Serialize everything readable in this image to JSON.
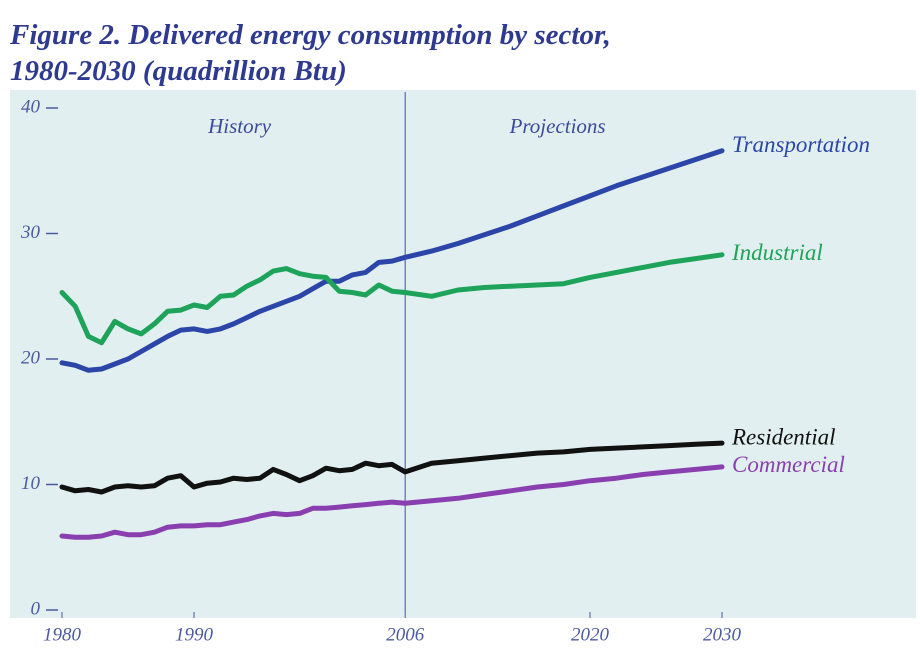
{
  "chart_data": {
    "type": "line",
    "title": [
      "Figure 2. Delivered energy consumption by sector,",
      "1980-2030 (quadrillion Btu)"
    ],
    "annotations": [
      "History",
      "Projections"
    ],
    "divider_x": 2006,
    "x": [
      1980,
      1981,
      1982,
      1983,
      1984,
      1985,
      1986,
      1987,
      1988,
      1989,
      1990,
      1991,
      1992,
      1993,
      1994,
      1995,
      1996,
      1997,
      1998,
      1999,
      2000,
      2001,
      2002,
      2003,
      2004,
      2005,
      2006,
      2008,
      2010,
      2012,
      2014,
      2016,
      2018,
      2020,
      2022,
      2024,
      2026,
      2028,
      2030
    ],
    "series": [
      {
        "name": "Transportation",
        "color": "#2b45a8",
        "values": [
          19.7,
          19.5,
          19.1,
          19.2,
          19.6,
          20.0,
          20.6,
          21.2,
          21.8,
          22.3,
          22.4,
          22.2,
          22.4,
          22.8,
          23.3,
          23.8,
          24.2,
          24.6,
          25.0,
          25.6,
          26.2,
          26.2,
          26.7,
          26.9,
          27.7,
          27.8,
          28.1,
          28.6,
          29.2,
          29.9,
          30.6,
          31.4,
          32.2,
          33.0,
          33.8,
          34.5,
          35.2,
          35.9,
          36.6
        ]
      },
      {
        "name": "Industrial",
        "color": "#1ea35a",
        "values": [
          25.3,
          24.2,
          21.8,
          21.3,
          23.0,
          22.4,
          22.0,
          22.8,
          23.8,
          23.9,
          24.3,
          24.1,
          25.0,
          25.1,
          25.8,
          26.3,
          27.0,
          27.2,
          26.8,
          26.6,
          26.5,
          25.4,
          25.3,
          25.1,
          25.9,
          25.4,
          25.3,
          25.0,
          25.5,
          25.7,
          25.8,
          25.9,
          26.0,
          26.5,
          26.9,
          27.3,
          27.7,
          28.0,
          28.3
        ]
      },
      {
        "name": "Residential",
        "color": "#111111",
        "values": [
          9.8,
          9.5,
          9.6,
          9.4,
          9.8,
          9.9,
          9.8,
          9.9,
          10.5,
          10.7,
          9.8,
          10.1,
          10.2,
          10.5,
          10.4,
          10.5,
          11.2,
          10.8,
          10.3,
          10.7,
          11.3,
          11.1,
          11.2,
          11.7,
          11.5,
          11.6,
          11.0,
          11.7,
          11.9,
          12.1,
          12.3,
          12.5,
          12.6,
          12.8,
          12.9,
          13.0,
          13.1,
          13.2,
          13.3
        ]
      },
      {
        "name": "Commercial",
        "color": "#8a3fb0",
        "values": [
          5.9,
          5.8,
          5.8,
          5.9,
          6.2,
          6.0,
          6.0,
          6.2,
          6.6,
          6.7,
          6.7,
          6.8,
          6.8,
          7.0,
          7.2,
          7.5,
          7.7,
          7.6,
          7.7,
          8.1,
          8.1,
          8.2,
          8.3,
          8.4,
          8.5,
          8.6,
          8.5,
          8.7,
          8.9,
          9.2,
          9.5,
          9.8,
          10.0,
          10.3,
          10.5,
          10.8,
          11.0,
          11.2,
          11.4
        ]
      }
    ],
    "xlim": [
      1980,
      2030
    ],
    "xticks": [
      1980,
      1990,
      2006,
      2020,
      2030
    ],
    "ylim": [
      0,
      40
    ],
    "yticks": [
      0,
      10,
      20,
      30,
      40
    ]
  }
}
